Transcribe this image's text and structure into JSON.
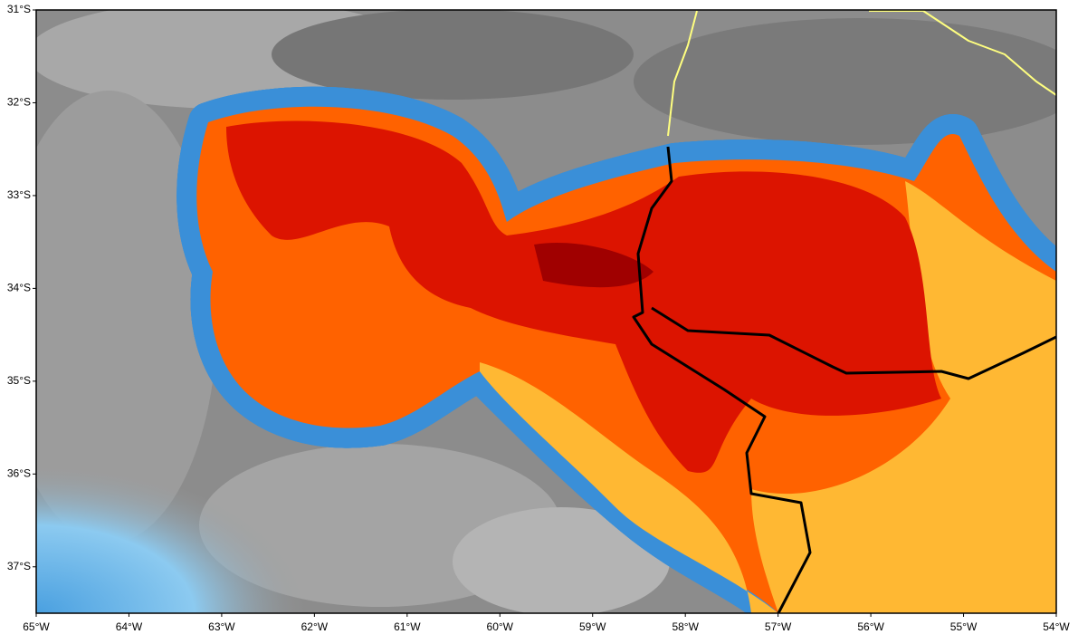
{
  "map": {
    "xlim": [
      -65,
      -54
    ],
    "ylim": [
      -37.5,
      -31
    ],
    "xticks": [
      {
        "value": -65,
        "label": "65°W"
      },
      {
        "value": -64,
        "label": "64°W"
      },
      {
        "value": -63,
        "label": "63°W"
      },
      {
        "value": -62,
        "label": "62°W"
      },
      {
        "value": -61,
        "label": "61°W"
      },
      {
        "value": -60,
        "label": "60°W"
      },
      {
        "value": -59,
        "label": "59°W"
      },
      {
        "value": -58,
        "label": "58°W"
      },
      {
        "value": -57,
        "label": "57°W"
      },
      {
        "value": -56,
        "label": "56°W"
      },
      {
        "value": -55,
        "label": "55°W"
      },
      {
        "value": -54,
        "label": "54°W"
      }
    ],
    "yticks": [
      {
        "value": -31,
        "label": "31°S"
      },
      {
        "value": -32,
        "label": "32°S"
      },
      {
        "value": -33,
        "label": "33°S"
      },
      {
        "value": -34,
        "label": "34°S"
      },
      {
        "value": -35,
        "label": "35°S"
      },
      {
        "value": -36,
        "label": "36°S"
      },
      {
        "value": -37,
        "label": "37°S"
      }
    ]
  }
}
